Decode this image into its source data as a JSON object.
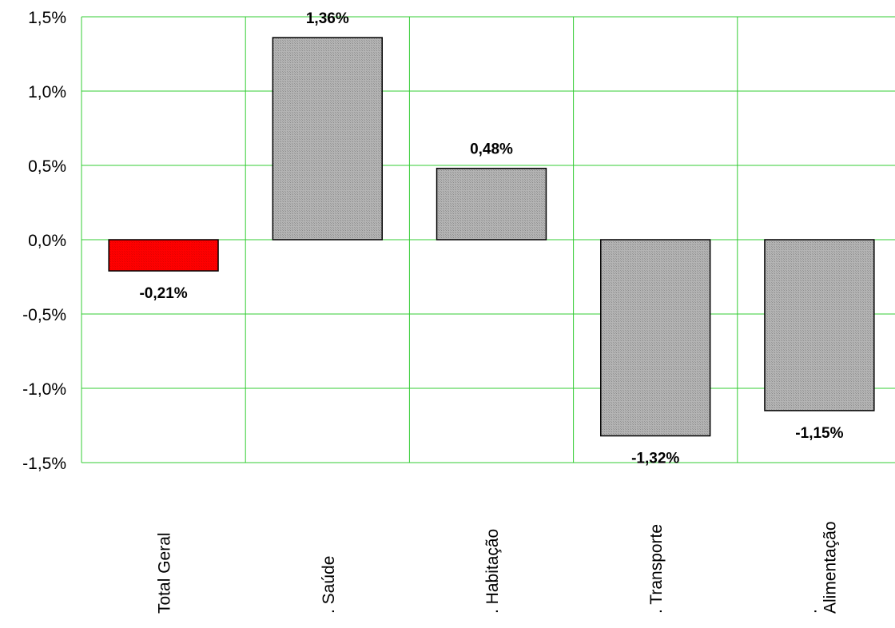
{
  "chart_data": {
    "type": "bar",
    "title": "",
    "xlabel": "",
    "ylabel": "",
    "categories": [
      "Total Geral",
      ". Saúde",
      ". Habitação",
      ". Transporte",
      ". Alimentação"
    ],
    "category_label_lines": [
      [
        "Total Geral"
      ],
      [
        ". Saúde"
      ],
      [
        ". Habitação"
      ],
      [
        ". Transporte"
      ],
      [
        ".",
        "Alimentação"
      ]
    ],
    "values": [
      -0.21,
      1.36,
      0.48,
      -1.32,
      -1.15
    ],
    "data_labels": [
      "-0,21%",
      "1,36%",
      "0,48%",
      "-1,32%",
      "-1,15%"
    ],
    "bar_colors": [
      "#ff0000",
      "#a6a6a6",
      "#a6a6a6",
      "#a6a6a6",
      "#a6a6a6"
    ],
    "ylim": [
      -1.5,
      1.5
    ],
    "yticks": [
      1.5,
      1.0,
      0.5,
      0.0,
      -0.5,
      -1.0,
      -1.5
    ],
    "ytick_labels": [
      "1,5%",
      "1,0%",
      "0,5%",
      "0,0%",
      "-0,5%",
      "-1,0%",
      "-1,5%"
    ],
    "grid": true,
    "grid_color": "#33cc33",
    "legend": "none"
  }
}
